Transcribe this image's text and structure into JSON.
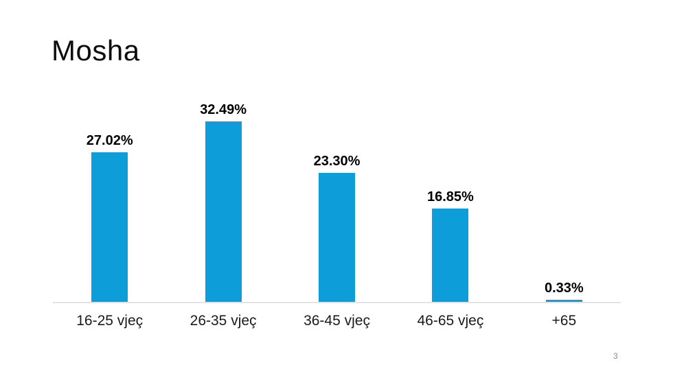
{
  "slide": {
    "title": "Mosha",
    "page_number": "3"
  },
  "chart_data": {
    "type": "bar",
    "title": "Mosha",
    "categories": [
      "16-25 vjeç",
      "26-35 vjeç",
      "36-45 vjeç",
      "46-65 vjeç",
      "+65"
    ],
    "values": [
      27.02,
      32.49,
      23.3,
      16.85,
      0.33
    ],
    "data_labels": [
      "27.02%",
      "32.49%",
      "23.30%",
      "16.85%",
      "0.33%"
    ],
    "xlabel": "",
    "ylabel": "",
    "ylim": [
      0,
      35
    ],
    "grid": false,
    "legend": false,
    "bar_color": "#0d9dd9",
    "axis_line_color": "#e2e2e2",
    "data_label_color": "#000000"
  }
}
